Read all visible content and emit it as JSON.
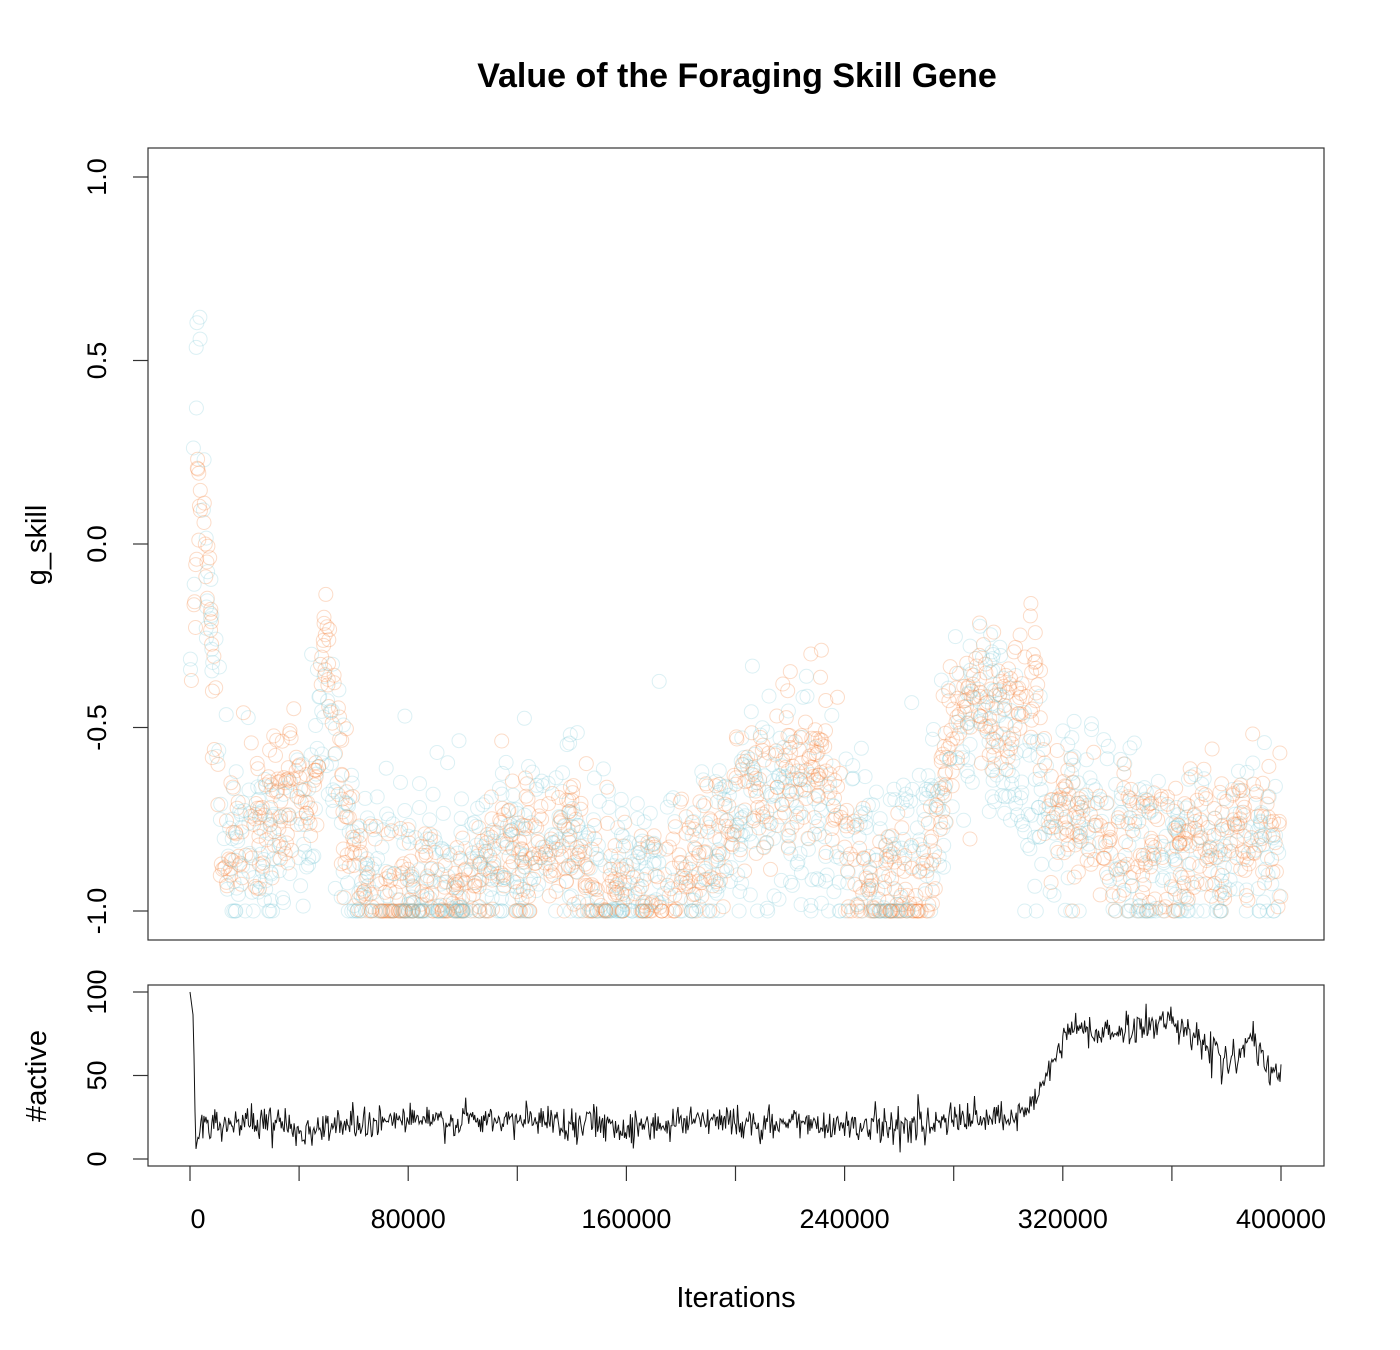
{
  "colors": {
    "orange": "#f4823a",
    "blue": "#7fc9d8",
    "line": "#111111"
  },
  "chart_data": [
    {
      "type": "scatter",
      "title": "Value of the Foraging Skill Gene",
      "ylabel": "g_skill",
      "xlim": [
        0,
        400000
      ],
      "ylim": [
        -1.0,
        1.0
      ],
      "yticks": [
        "-1.0",
        "-0.5",
        "0.0",
        "0.5",
        "1.0"
      ],
      "yticks_values": [
        -1.0,
        -0.5,
        0.0,
        0.5,
        1.0
      ],
      "marker": "open circle",
      "series": [
        {
          "color": "#f4823a",
          "trend_x": [
            0,
            3000,
            6000,
            12000,
            20000,
            30000,
            40000,
            45000,
            50000,
            55000,
            62000,
            70000,
            80000,
            90000,
            100000,
            110000,
            118000,
            125000,
            132000,
            140000,
            146000,
            150000,
            158000,
            165000,
            172000,
            180000,
            188000,
            195000,
            200000,
            210000,
            215000,
            222000,
            230000,
            240000,
            248000,
            255000,
            262000,
            270000,
            278000,
            285000,
            290000,
            295000,
            300000,
            310000,
            315000,
            320000,
            330000,
            340000,
            350000,
            360000,
            370000,
            380000,
            390000,
            400000
          ],
          "trend_y": [
            -0.7,
            0.2,
            0.0,
            -0.85,
            -0.8,
            -0.75,
            -0.68,
            -0.7,
            -0.25,
            -0.6,
            -0.9,
            -0.95,
            -0.95,
            -0.95,
            -0.95,
            -0.88,
            -0.82,
            -0.85,
            -0.8,
            -0.75,
            -0.92,
            -0.95,
            -0.92,
            -0.95,
            -0.97,
            -0.9,
            -0.88,
            -0.82,
            -0.68,
            -0.68,
            -0.6,
            -0.65,
            -0.55,
            -0.8,
            -0.95,
            -0.93,
            -0.95,
            -0.95,
            -0.55,
            -0.4,
            -0.4,
            -0.5,
            -0.45,
            -0.35,
            -0.7,
            -0.75,
            -0.8,
            -0.85,
            -0.85,
            -0.82,
            -0.8,
            -0.8,
            -0.75,
            -0.78
          ],
          "spread": 0.1
        },
        {
          "color": "#7fc9d8",
          "trend_x": [
            0,
            3000,
            6000,
            12000,
            20000,
            30000,
            40000,
            50000,
            60000,
            70000,
            80000,
            100000,
            120000,
            140000,
            160000,
            180000,
            200000,
            220000,
            240000,
            260000,
            280000,
            290000,
            300000,
            310000,
            318000,
            325000,
            332000,
            340000,
            350000,
            360000,
            370000,
            380000,
            390000,
            400000
          ],
          "trend_y": [
            -0.4,
            0.6,
            -0.1,
            -0.8,
            -0.8,
            -0.85,
            -0.8,
            -0.5,
            -0.85,
            -0.9,
            -0.92,
            -0.92,
            -0.85,
            -0.8,
            -0.9,
            -0.9,
            -0.75,
            -0.7,
            -0.85,
            -0.9,
            -0.6,
            -0.35,
            -0.55,
            -0.75,
            -0.75,
            -0.7,
            -0.75,
            -0.82,
            -0.85,
            -0.82,
            -0.85,
            -0.88,
            -0.78,
            -0.85
          ],
          "spread": 0.14
        }
      ]
    },
    {
      "type": "line",
      "ylabel": "#active",
      "xlabel": "Iterations",
      "xlim": [
        0,
        400000
      ],
      "ylim": [
        0,
        100
      ],
      "yticks": [
        "0",
        "50",
        "100"
      ],
      "yticks_values": [
        0,
        50,
        100
      ],
      "xticks": [
        "0",
        "80000",
        "160000",
        "240000",
        "320000",
        "400000"
      ],
      "xticks_values": [
        0,
        80000,
        160000,
        240000,
        320000,
        400000
      ],
      "minor_xticks_values": [
        40000,
        120000,
        200000,
        280000,
        360000
      ],
      "x": [
        0,
        1200,
        2000,
        4000,
        10000,
        20000,
        30000,
        40000,
        45000,
        50000,
        60000,
        70000,
        80000,
        90000,
        100000,
        110000,
        120000,
        130000,
        140000,
        150000,
        160000,
        170000,
        180000,
        190000,
        200000,
        210000,
        220000,
        230000,
        240000,
        250000,
        260000,
        270000,
        280000,
        290000,
        300000,
        305000,
        310000,
        314000,
        318000,
        322000,
        326000,
        330000,
        335000,
        340000,
        345000,
        350000,
        355000,
        360000,
        365000,
        370000,
        375000,
        380000,
        384000,
        388000,
        392000,
        396000,
        400000
      ],
      "y": [
        100,
        85,
        12,
        18,
        22,
        22,
        21,
        20,
        16,
        20,
        22,
        23,
        24,
        22,
        23,
        22,
        23,
        23,
        22,
        22,
        19,
        20,
        23,
        25,
        22,
        19,
        22,
        21,
        21,
        20,
        20,
        21,
        23,
        24,
        23,
        25,
        35,
        50,
        65,
        76,
        78,
        77,
        75,
        75,
        78,
        80,
        82,
        82,
        80,
        72,
        63,
        58,
        62,
        72,
        62,
        52,
        48
      ],
      "noise": 5
    }
  ]
}
